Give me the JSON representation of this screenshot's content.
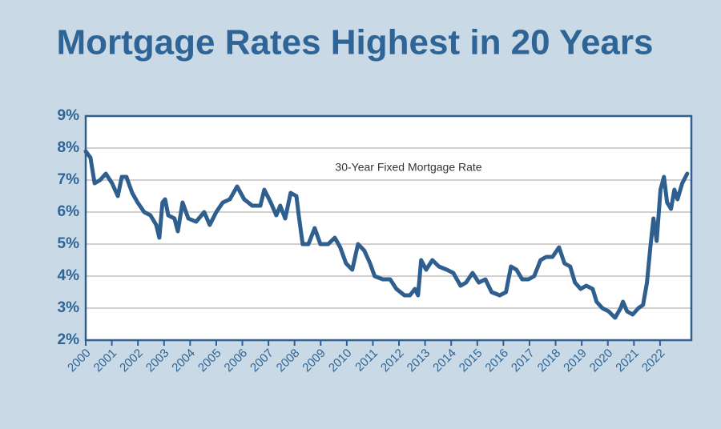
{
  "chart_data": {
    "type": "line",
    "title": "Mortgage Rates Highest in 20 Years",
    "x": [
      2000.0,
      2000.18,
      2000.34,
      2000.55,
      2000.77,
      2001.01,
      2001.23,
      2001.38,
      2001.56,
      2001.78,
      2001.99,
      2002.24,
      2002.48,
      2002.7,
      2002.82,
      2002.94,
      2003.04,
      2003.16,
      2003.4,
      2003.53,
      2003.71,
      2003.93,
      2004.23,
      2004.54,
      2004.75,
      2005.0,
      2005.25,
      2005.52,
      2005.8,
      2006.07,
      2006.38,
      2006.69,
      2006.84,
      2007.09,
      2007.3,
      2007.45,
      2007.64,
      2007.85,
      2008.07,
      2008.16,
      2008.31,
      2008.53,
      2008.77,
      2008.99,
      2009.29,
      2009.54,
      2009.75,
      2009.97,
      2010.21,
      2010.43,
      2010.67,
      2010.89,
      2011.07,
      2011.38,
      2011.66,
      2011.9,
      2012.21,
      2012.42,
      2012.61,
      2012.73,
      2012.85,
      2013.04,
      2013.28,
      2013.53,
      2013.83,
      2014.08,
      2014.36,
      2014.57,
      2014.82,
      2015.06,
      2015.31,
      2015.55,
      2015.86,
      2016.1,
      2016.29,
      2016.5,
      2016.72,
      2016.96,
      2017.18,
      2017.42,
      2017.64,
      2017.88,
      2018.13,
      2018.34,
      2018.56,
      2018.74,
      2018.96,
      2019.17,
      2019.42,
      2019.57,
      2019.79,
      2020.03,
      2020.28,
      2020.49,
      2020.58,
      2020.74,
      2020.95,
      2021.17,
      2021.35,
      2021.5,
      2021.63,
      2021.75,
      2021.87,
      2022.02,
      2022.15,
      2022.27,
      2022.42,
      2022.55,
      2022.67,
      2022.85,
      2023.04
    ],
    "series": [
      {
        "name": "30-Year Fixed Mortgage Rate",
        "color": "#2e5f8e",
        "values": [
          7.9,
          7.7,
          6.9,
          7.0,
          7.2,
          6.9,
          6.5,
          7.1,
          7.1,
          6.6,
          6.3,
          6.0,
          5.9,
          5.6,
          5.2,
          6.3,
          6.4,
          5.9,
          5.8,
          5.4,
          6.3,
          5.8,
          5.7,
          6.0,
          5.6,
          6.0,
          6.3,
          6.4,
          6.8,
          6.4,
          6.2,
          6.2,
          6.7,
          6.3,
          5.9,
          6.2,
          5.8,
          6.6,
          6.5,
          5.9,
          5.0,
          5.0,
          5.5,
          5.0,
          5.0,
          5.2,
          4.9,
          4.4,
          4.2,
          5.0,
          4.8,
          4.4,
          4.0,
          3.9,
          3.9,
          3.6,
          3.4,
          3.4,
          3.6,
          3.4,
          4.5,
          4.2,
          4.5,
          4.3,
          4.2,
          4.1,
          3.7,
          3.8,
          4.1,
          3.8,
          3.9,
          3.5,
          3.4,
          3.5,
          4.3,
          4.2,
          3.9,
          3.9,
          4.0,
          4.5,
          4.6,
          4.6,
          4.9,
          4.4,
          4.3,
          3.8,
          3.6,
          3.7,
          3.6,
          3.2,
          3.0,
          2.9,
          2.7,
          3.0,
          3.2,
          2.9,
          2.8,
          3.0,
          3.1,
          3.8,
          4.9,
          5.8,
          5.1,
          6.7,
          7.1,
          6.3,
          6.1,
          6.7,
          6.4,
          6.9,
          7.2
        ]
      }
    ],
    "xlim": [
      2000,
      2023.2
    ],
    "xticks": [
      2000,
      2001,
      2002,
      2003,
      2004,
      2005,
      2006,
      2007,
      2008,
      2009,
      2010,
      2011,
      2012,
      2013,
      2014,
      2015,
      2016,
      2017,
      2018,
      2019,
      2020,
      2021,
      2022
    ],
    "ylim": [
      2,
      9
    ],
    "yticks": [
      {
        "value": 2,
        "label": "2%"
      },
      {
        "value": 3,
        "label": "3%"
      },
      {
        "value": 4,
        "label": "4%"
      },
      {
        "value": 5,
        "label": "5%"
      },
      {
        "value": 6,
        "label": "6%"
      },
      {
        "value": 7,
        "label": "7%"
      },
      {
        "value": 8,
        "label": "8%"
      },
      {
        "value": 9,
        "label": "9%"
      }
    ],
    "grid": true
  }
}
